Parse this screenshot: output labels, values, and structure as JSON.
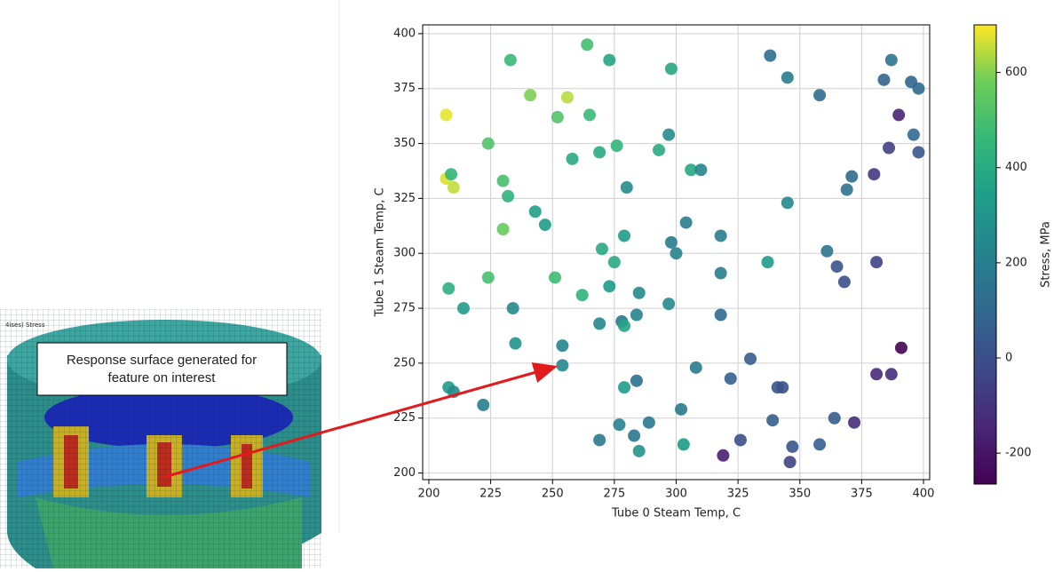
{
  "figure": {
    "callout": [
      "Response surface generated for",
      "feature on interest"
    ],
    "fea_label": "4ises) Stress"
  },
  "chart_data": {
    "type": "scatter",
    "x_label": "Tube 0 Steam Temp, C",
    "y_label": "Tube 1 Steam Temp, C",
    "colorbar_label": "Stress, MPa",
    "xlim": [
      197.5,
      402.5
    ],
    "ylim": [
      197,
      404
    ],
    "clim": [
      -265,
      700
    ],
    "xticks": [
      200,
      225,
      250,
      275,
      300,
      325,
      350,
      375,
      400
    ],
    "yticks": [
      200,
      225,
      250,
      275,
      300,
      325,
      350,
      375,
      400
    ],
    "cticks": [
      -200,
      0,
      200,
      400,
      600
    ],
    "grid": true,
    "colormap": "viridis",
    "x": [
      207,
      207,
      209,
      210,
      208,
      214,
      208,
      210,
      222,
      224,
      224,
      233,
      230,
      232,
      230,
      234,
      235,
      241,
      243,
      247,
      256,
      252,
      251,
      254,
      254,
      264,
      265,
      258,
      262,
      273,
      269,
      276,
      270,
      275,
      273,
      269,
      269,
      280,
      279,
      278,
      279,
      279,
      277,
      285,
      284,
      284,
      283,
      285,
      289,
      293,
      298,
      297,
      298,
      300,
      297,
      302,
      303,
      306,
      310,
      304,
      308,
      318,
      318,
      318,
      319,
      322,
      326,
      330,
      338,
      345,
      337,
      345,
      341,
      343,
      339,
      347,
      346,
      358,
      361,
      365,
      368,
      364,
      358,
      372,
      369,
      371,
      387,
      384,
      395,
      398,
      390,
      386,
      396,
      398,
      380,
      381,
      391,
      381,
      387
    ],
    "y": [
      363,
      334,
      336,
      330,
      284,
      275,
      239,
      237,
      231,
      350,
      289,
      388,
      333,
      326,
      311,
      275,
      259,
      372,
      319,
      313,
      371,
      362,
      289,
      258,
      249,
      395,
      363,
      343,
      281,
      388,
      346,
      349,
      302,
      296,
      285,
      268,
      215,
      330,
      308,
      269,
      267,
      239,
      222,
      282,
      272,
      242,
      217,
      210,
      223,
      347,
      384,
      354,
      305,
      300,
      277,
      229,
      213,
      338,
      338,
      314,
      248,
      308,
      291,
      272,
      208,
      243,
      215,
      252,
      390,
      380,
      296,
      323,
      239,
      239,
      224,
      212,
      205,
      372,
      301,
      294,
      287,
      225,
      213,
      223,
      329,
      335,
      388,
      379,
      378,
      375,
      363,
      348,
      354,
      346,
      336,
      296,
      257,
      245,
      245
    ],
    "c": [
      680,
      670,
      450,
      650,
      420,
      330,
      320,
      260,
      200,
      520,
      500,
      470,
      500,
      440,
      560,
      250,
      300,
      590,
      350,
      340,
      640,
      520,
      480,
      230,
      250,
      490,
      470,
      400,
      430,
      370,
      400,
      450,
      380,
      400,
      320,
      240,
      180,
      260,
      330,
      170,
      360,
      330,
      220,
      260,
      220,
      130,
      170,
      300,
      170,
      400,
      380,
      260,
      190,
      220,
      250,
      180,
      320,
      380,
      230,
      200,
      190,
      200,
      200,
      100,
      -170,
      70,
      0,
      50,
      130,
      190,
      320,
      240,
      30,
      10,
      60,
      30,
      -50,
      120,
      150,
      20,
      0,
      50,
      70,
      -120,
      150,
      100,
      150,
      90,
      90,
      100,
      -150,
      -60,
      100,
      30,
      -80,
      -40,
      -260,
      -140,
      -120
    ]
  }
}
